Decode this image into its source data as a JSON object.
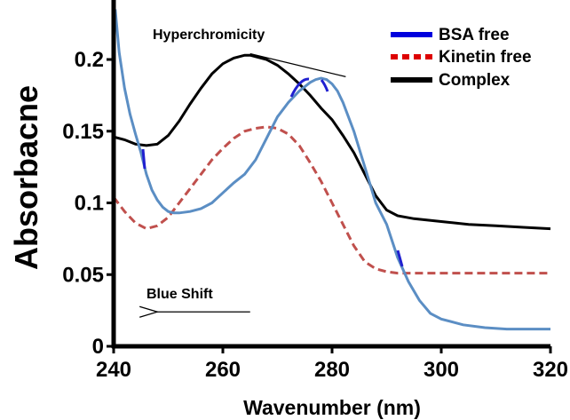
{
  "chart_data": {
    "type": "line",
    "title": "",
    "xlabel": "Wavenumber (nm)",
    "ylabel": "Absorbacne",
    "xlim": [
      240,
      320
    ],
    "ylim": [
      0,
      0.235
    ],
    "xticks": [
      "240",
      "260",
      "280",
      "300",
      "320"
    ],
    "yticks": [
      "0",
      "0.05",
      "0.1",
      "0.15",
      "0.2"
    ],
    "grid": false,
    "legend_position": "top-right",
    "series": [
      {
        "name": "BSA free",
        "color": "#5b8ec4",
        "legend_color": "#0000dd",
        "style": "solid",
        "x": [
          240.3,
          241,
          242,
          243,
          244,
          245,
          246,
          247,
          248,
          249,
          250,
          251,
          252,
          254,
          256,
          258,
          260,
          262,
          264,
          266,
          268,
          270,
          272,
          274,
          276,
          277,
          278,
          279,
          280,
          281,
          282,
          284,
          286,
          288,
          290,
          292,
          294,
          296,
          298,
          300,
          304,
          308,
          312,
          316,
          320
        ],
        "values": [
          0.235,
          0.205,
          0.18,
          0.162,
          0.148,
          0.135,
          0.12,
          0.109,
          0.102,
          0.097,
          0.094,
          0.093,
          0.093,
          0.094,
          0.096,
          0.1,
          0.107,
          0.114,
          0.12,
          0.13,
          0.145,
          0.16,
          0.17,
          0.178,
          0.184,
          0.186,
          0.187,
          0.186,
          0.183,
          0.178,
          0.17,
          0.15,
          0.125,
          0.1,
          0.085,
          0.062,
          0.045,
          0.032,
          0.023,
          0.019,
          0.015,
          0.013,
          0.012,
          0.012,
          0.012
        ]
      },
      {
        "name": "Kinetin free",
        "color": "#c0504d",
        "legend_color": "#dd0000",
        "style": "dashed",
        "x": [
          240,
          242,
          244,
          246,
          248,
          250,
          252,
          254,
          256,
          258,
          260,
          262,
          264,
          266,
          268,
          270,
          272,
          274,
          276,
          278,
          280,
          282,
          284,
          286,
          288,
          290,
          292,
          295,
          300,
          305,
          310,
          315,
          320
        ],
        "values": [
          0.104,
          0.094,
          0.086,
          0.082,
          0.084,
          0.09,
          0.1,
          0.11,
          0.12,
          0.13,
          0.138,
          0.145,
          0.15,
          0.152,
          0.153,
          0.152,
          0.148,
          0.14,
          0.128,
          0.115,
          0.1,
          0.085,
          0.07,
          0.059,
          0.054,
          0.052,
          0.051,
          0.051,
          0.051,
          0.051,
          0.051,
          0.051,
          0.051
        ]
      },
      {
        "name": "Complex",
        "color": "#000000",
        "legend_color": "#000000",
        "style": "solid",
        "x": [
          240,
          242,
          244,
          246,
          248,
          250,
          252,
          254,
          256,
          258,
          260,
          262,
          264,
          265,
          266,
          268,
          270,
          272,
          274,
          276,
          278,
          280,
          282,
          284,
          286,
          288,
          290,
          292,
          295,
          300,
          305,
          310,
          315,
          320
        ],
        "values": [
          0.146,
          0.144,
          0.141,
          0.14,
          0.141,
          0.147,
          0.157,
          0.169,
          0.18,
          0.19,
          0.197,
          0.201,
          0.203,
          0.203,
          0.202,
          0.2,
          0.196,
          0.19,
          0.183,
          0.175,
          0.166,
          0.158,
          0.147,
          0.135,
          0.12,
          0.105,
          0.095,
          0.091,
          0.089,
          0.087,
          0.085,
          0.084,
          0.083,
          0.082
        ]
      }
    ],
    "annotations": [
      {
        "text": "Hyperchromicity",
        "type": "line",
        "from": [
          265,
          0.204
        ],
        "to": [
          282.5,
          0.188
        ]
      },
      {
        "text": "Blue Shift",
        "type": "arrow",
        "from": [
          265,
          0.024
        ],
        "to": [
          248,
          0.024
        ]
      }
    ]
  }
}
